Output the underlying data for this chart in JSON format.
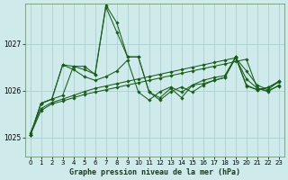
{
  "xlabel": "Graphe pression niveau de la mer (hPa)",
  "background_color": "#ceeaea",
  "grid_color": "#aed4d4",
  "line_color": "#1a5c1a",
  "ylim": [
    1024.6,
    1027.85
  ],
  "xlim": [
    -0.5,
    23.5
  ],
  "yticks": [
    1025,
    1026,
    1027
  ],
  "xticks": [
    0,
    1,
    2,
    3,
    4,
    5,
    6,
    7,
    8,
    9,
    10,
    11,
    12,
    13,
    14,
    15,
    16,
    17,
    18,
    19,
    20,
    21,
    22,
    23
  ],
  "series": [
    [
      1025.05,
      1025.58,
      1025.72,
      1025.78,
      1025.85,
      1025.92,
      1025.97,
      1026.02,
      1026.07,
      1026.12,
      1026.17,
      1026.22,
      1026.27,
      1026.32,
      1026.37,
      1026.42,
      1026.47,
      1026.52,
      1026.57,
      1026.62,
      1026.67,
      1026.05,
      1026.0,
      1026.1
    ],
    [
      1025.1,
      1025.62,
      1025.75,
      1025.82,
      1025.9,
      1025.98,
      1026.05,
      1026.1,
      1026.15,
      1026.2,
      1026.25,
      1026.3,
      1026.35,
      1026.4,
      1026.45,
      1026.5,
      1026.55,
      1026.6,
      1026.65,
      1026.7,
      1026.25,
      1026.05,
      1025.98,
      1026.12
    ],
    [
      1025.05,
      1025.73,
      1025.82,
      1026.55,
      1026.45,
      1026.3,
      1026.22,
      1026.3,
      1026.42,
      1026.65,
      1025.97,
      1025.8,
      1025.98,
      1026.08,
      1025.97,
      1026.12,
      1026.22,
      1026.28,
      1026.32,
      1026.72,
      1026.1,
      1026.02,
      1026.07,
      1026.18
    ],
    [
      1025.05,
      1025.73,
      1025.82,
      1026.55,
      1026.52,
      1026.52,
      1026.35,
      1027.78,
      1027.25,
      1026.72,
      1026.72,
      1025.97,
      1025.8,
      1025.98,
      1026.08,
      1025.97,
      1026.12,
      1026.22,
      1026.28,
      1026.7,
      1026.42,
      1026.12,
      1026.02,
      1026.2
    ],
    [
      1025.05,
      1025.73,
      1025.82,
      1025.9,
      1026.52,
      1026.45,
      1026.35,
      1027.82,
      1027.45,
      1026.72,
      1026.72,
      1025.97,
      1025.85,
      1026.05,
      1025.85,
      1026.12,
      1026.15,
      1026.22,
      1026.28,
      1026.72,
      1026.12,
      1026.02,
      1026.07,
      1026.2
    ]
  ]
}
